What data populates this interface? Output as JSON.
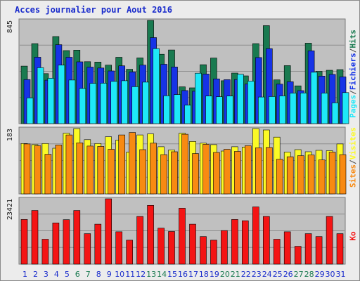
{
  "title": "Acces journalier pour Aout 2016",
  "colors": {
    "hits": "#197a50",
    "files": "#1633e6",
    "pages": "#1ee8f8",
    "sites": "#f88a12",
    "visits": "#fbfa26",
    "kbytes": "#f41414",
    "frame_bg": "#ececec",
    "panel_bg": "#c0c0c0",
    "weekend_day_label": "#1a7a50",
    "day_label": "#1a2ccc",
    "title": "#1a2ccc"
  },
  "legend": {
    "top": [
      {
        "text": "Pages",
        "color": "#1ee8f8"
      },
      {
        "text": "/",
        "color": "#444444"
      },
      {
        "text": "Fichiers",
        "color": "#1633e6"
      },
      {
        "text": "/",
        "color": "#444444"
      },
      {
        "text": "Hits",
        "color": "#197a50"
      }
    ],
    "middle": [
      {
        "text": "Sites",
        "color": "#f88a12"
      },
      {
        "text": "/",
        "color": "#444444"
      },
      {
        "text": "Visites",
        "color": "#fbfa26"
      }
    ],
    "bottom": [
      {
        "text": "Ko",
        "color": "#f41414"
      }
    ]
  },
  "chart_data": {
    "type": "bar",
    "categories": [
      "1",
      "2",
      "3",
      "4",
      "5",
      "6",
      "7",
      "8",
      "9",
      "10",
      "11",
      "12",
      "13",
      "14",
      "15",
      "16",
      "17",
      "18",
      "19",
      "20",
      "21",
      "22",
      "23",
      "24",
      "25",
      "26",
      "27",
      "28",
      "29",
      "30",
      "31"
    ],
    "weekend_days": [
      "6",
      "7",
      "13",
      "14",
      "20",
      "21",
      "27",
      "28"
    ],
    "panels": [
      {
        "name": "hits-files-pages",
        "ymax_label": "845",
        "ymax": 845,
        "series": [
          {
            "name": "Hits",
            "color": "#197a50",
            "values": [
              471,
              655,
              409,
              713,
              598,
              602,
              507,
              504,
              479,
              543,
              445,
              538,
              845,
              568,
              603,
              301,
              293,
              482,
              537,
              351,
              414,
              391,
              655,
              802,
              358,
              475,
              309,
              659,
              428,
              437,
              442
            ]
          },
          {
            "name": "Fichiers",
            "color": "#1633e6",
            "values": [
              361,
              544,
              356,
              646,
              543,
              506,
              463,
              455,
              431,
              473,
              423,
              479,
              704,
              486,
              464,
              271,
              265,
              406,
              366,
              360,
              361,
              324,
              541,
              614,
              323,
              343,
              270,
              596,
              389,
              403,
              383
            ]
          },
          {
            "name": "Pages",
            "color": "#1ee8f8",
            "values": [
              211,
              458,
              372,
              479,
              357,
              288,
              330,
              331,
              346,
              351,
              303,
              340,
              614,
              228,
              238,
              151,
              413,
              226,
              220,
              226,
              404,
              348,
              218,
              222,
              227,
              250,
              251,
              421,
              250,
              170,
              254
            ]
          }
        ]
      },
      {
        "name": "sites-visits",
        "ymax_label": "183",
        "ymax": 183,
        "series": [
          {
            "name": "Visites",
            "color": "#fbfa26",
            "values": [
              141,
              138,
              141,
              128,
              170,
              183,
              152,
              141,
              160,
              151,
              117,
              165,
              168,
              132,
              123,
              170,
              147,
              142,
              138,
              120,
              132,
              131,
              183,
              179,
              159,
              117,
              124,
              118,
              122,
              121,
              140
            ]
          },
          {
            "name": "Sites",
            "color": "#f88a12",
            "values": [
              140,
              135,
              111,
              137,
              165,
              143,
              134,
              133,
              125,
              165,
              172,
              124,
              142,
              110,
              118,
              167,
              113,
              139,
              116,
              125,
              119,
              135,
              129,
              130,
              97,
              104,
              107,
              109,
              95,
              117,
              110
            ]
          }
        ]
      },
      {
        "name": "kbytes",
        "ymax_label": "23421",
        "ymax": 23421,
        "series": [
          {
            "name": "Ko",
            "color": "#f41414",
            "values": [
              16022,
              19231,
              8948,
              14787,
              15932,
              19231,
              10934,
              14319,
              23421,
              11620,
              8580,
              17106,
              21074,
              12887,
              11714,
              20043,
              14319,
              9890,
              8580,
              12049,
              16022,
              15569,
              20521,
              17106,
              8949,
              11620,
              6389,
              10934,
              9890,
              17106,
              10934
            ]
          }
        ]
      }
    ]
  }
}
